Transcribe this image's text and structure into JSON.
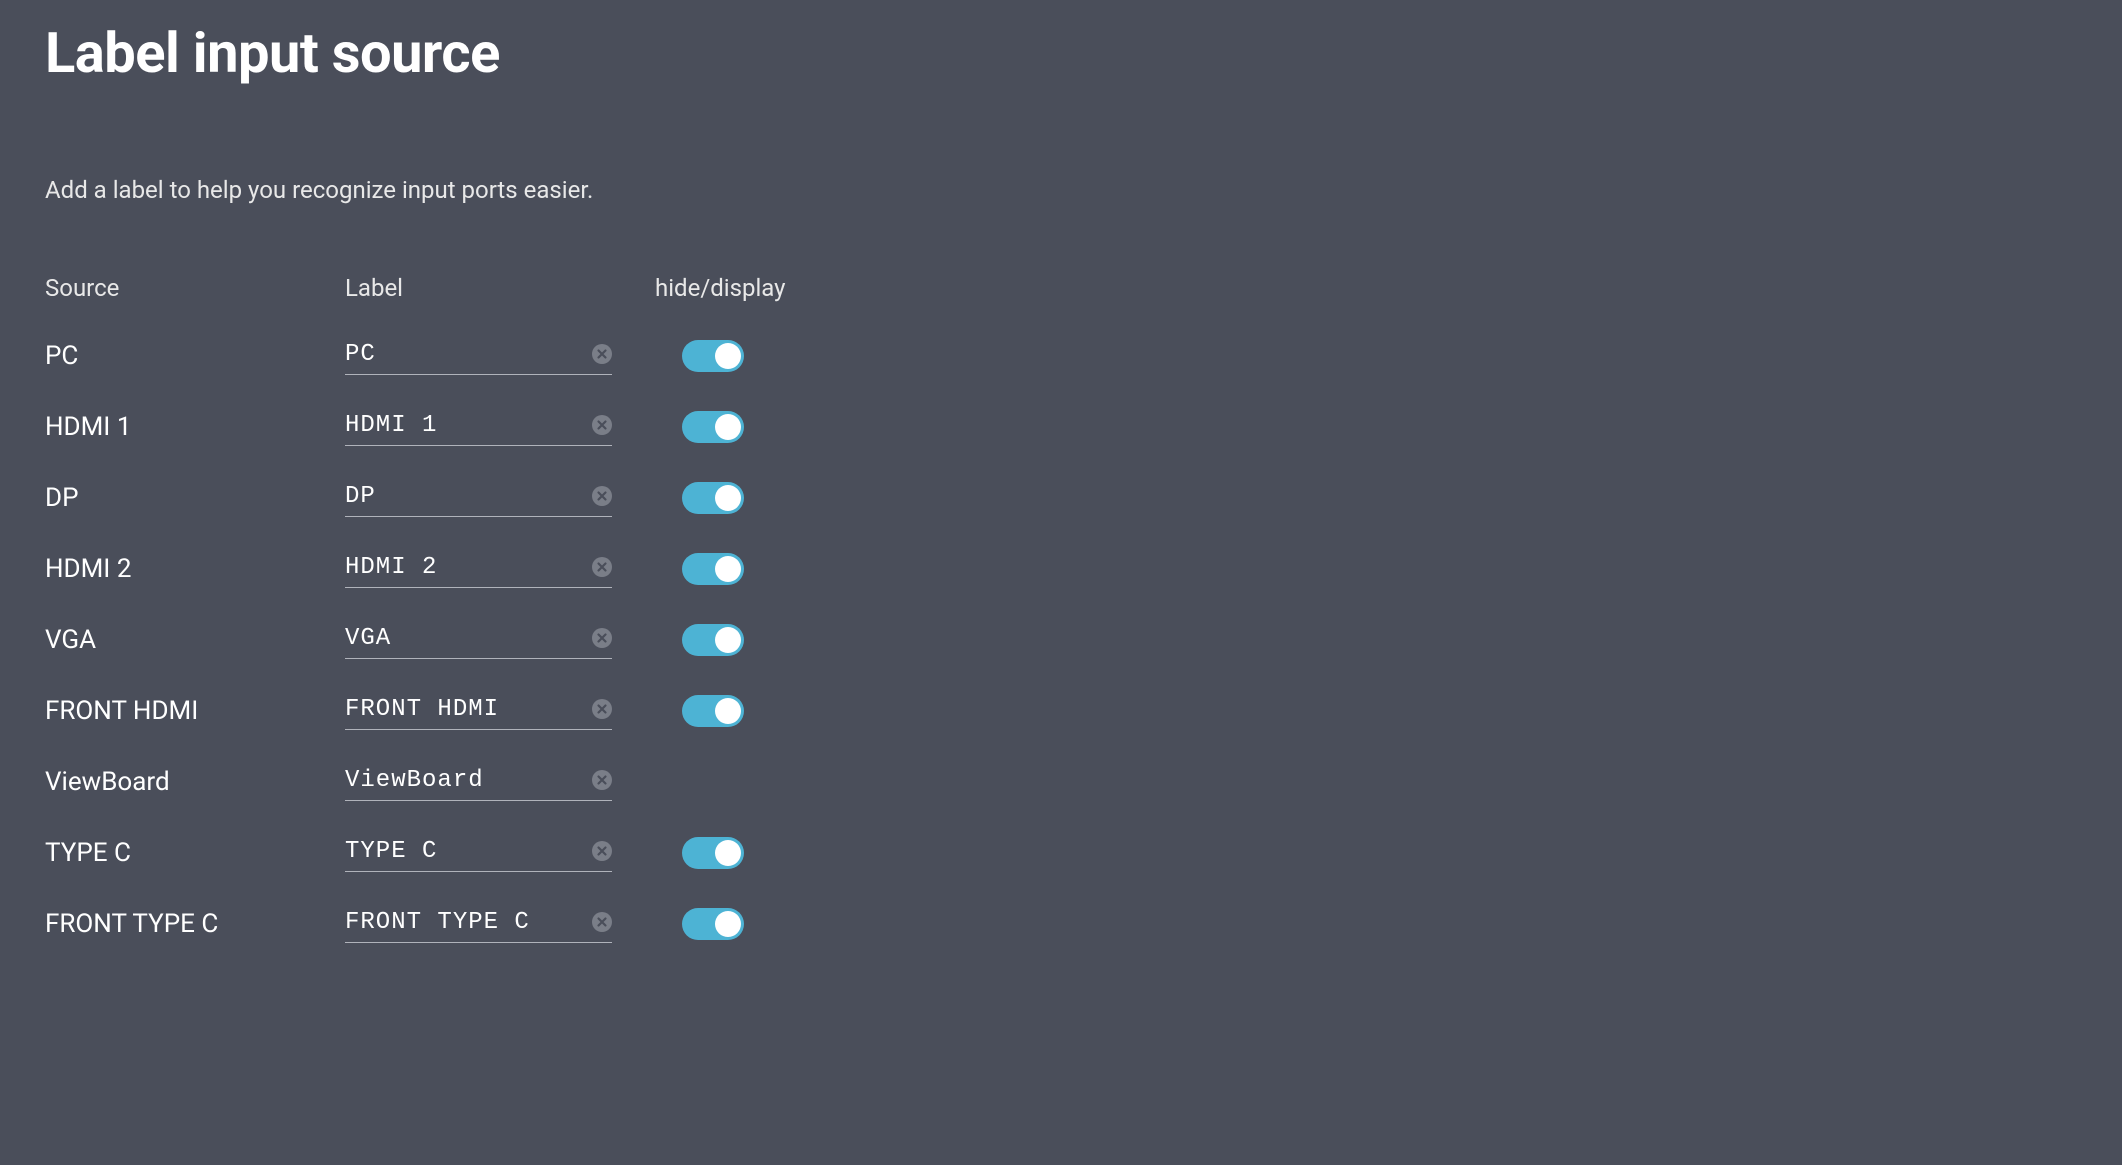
{
  "page": {
    "title": "Label input source",
    "description": "Add a label to help you recognize input ports easier."
  },
  "headers": {
    "source": "Source",
    "label": "Label",
    "hideDisplay": "hide/display"
  },
  "colors": {
    "background": "#4a4e5a",
    "text": "#ffffff",
    "textMuted": "#e8e8e8",
    "inputBorder": "#b0b3bb",
    "toggleActive": "#4db3d4",
    "toggleThumb": "#ffffff",
    "clearIcon": "#7a7e88"
  },
  "rows": [
    {
      "source": "PC",
      "label": "PC",
      "hasToggle": true,
      "toggleOn": true
    },
    {
      "source": "HDMI 1",
      "label": "HDMI 1",
      "hasToggle": true,
      "toggleOn": true
    },
    {
      "source": "DP",
      "label": "DP",
      "hasToggle": true,
      "toggleOn": true
    },
    {
      "source": "HDMI 2",
      "label": "HDMI 2",
      "hasToggle": true,
      "toggleOn": true
    },
    {
      "source": "VGA",
      "label": "VGA",
      "hasToggle": true,
      "toggleOn": true
    },
    {
      "source": "FRONT HDMI",
      "label": "FRONT HDMI",
      "hasToggle": true,
      "toggleOn": true
    },
    {
      "source": "ViewBoard",
      "label": "ViewBoard",
      "hasToggle": false,
      "toggleOn": false
    },
    {
      "source": "TYPE C",
      "label": "TYPE C",
      "hasToggle": true,
      "toggleOn": true
    },
    {
      "source": "FRONT TYPE C",
      "label": "FRONT TYPE C",
      "hasToggle": true,
      "toggleOn": true
    }
  ]
}
